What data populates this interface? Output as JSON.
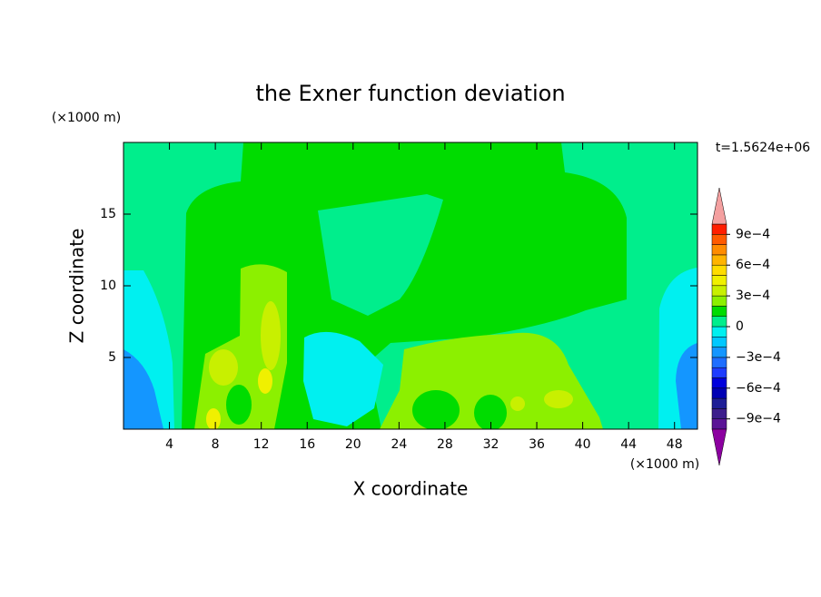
{
  "chart_data": {
    "type": "contour",
    "title": "the Exner function deviation",
    "x_label": "X coordinate",
    "y_label": "Z coordinate",
    "x_unit": "(×1000 m)",
    "y_unit": "(×1000 m)",
    "time_label": "t=1.5624e+06",
    "xlim": [
      0,
      50
    ],
    "xticks": [
      4,
      8,
      12,
      16,
      20,
      24,
      28,
      32,
      36,
      40,
      44,
      48
    ],
    "ylim": [
      0,
      20
    ],
    "yticks": [
      5,
      10,
      15
    ],
    "colorbar": {
      "lim": [
        -0.001,
        0.001
      ],
      "colors": [
        "#5a1496",
        "#3c1e8c",
        "#1e1e96",
        "#0000b4",
        "#0000dc",
        "#1e3cff",
        "#1e6eff",
        "#1496ff",
        "#00c8ff",
        "#00f0f0",
        "#00ee8c",
        "#00dc00",
        "#8cf000",
        "#c8f000",
        "#f0f000",
        "#ffdc00",
        "#ffb400",
        "#ff8c00",
        "#ff5a00",
        "#ff1e00"
      ],
      "under_color": "#8c00a0",
      "over_color": "#f4a0a0",
      "ticks": [
        {
          "value": -0.0009,
          "label": "−9e−4"
        },
        {
          "value": -0.0006,
          "label": "−6e−4"
        },
        {
          "value": -0.0003,
          "label": "−3e−4"
        },
        0,
        {
          "value": 0.0003,
          "label": "3e−4"
        },
        {
          "value": 0.0006,
          "label": "6e−4"
        },
        {
          "value": 0.0009,
          "label": "9e−4"
        }
      ]
    }
  }
}
